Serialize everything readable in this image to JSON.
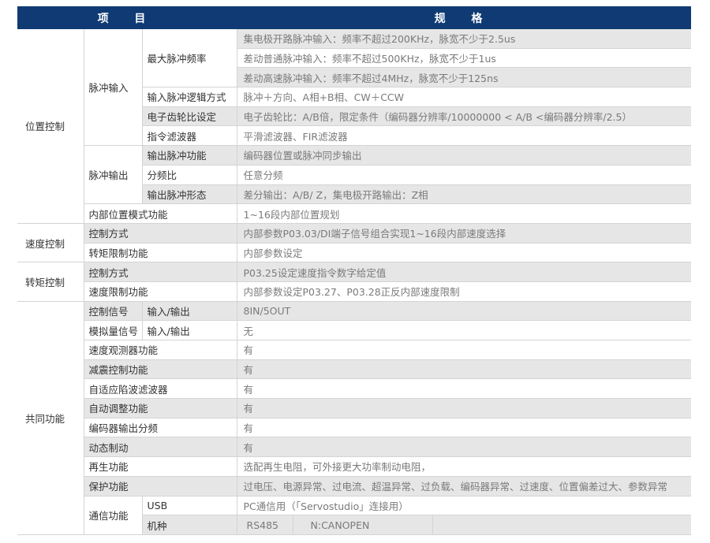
{
  "header": {
    "item": "项 目",
    "spec": "规 格",
    "bg_color": "#0f3a73"
  },
  "position": {
    "label": "位置控制",
    "pulse_in": {
      "label": "脉冲输入",
      "max_freq": "最大脉冲频率",
      "freq1": "集电极开路脉冲输入：频率不超过200KHz，脉宽不少于2.5us",
      "freq2": "差动普通脉冲输入：频率不超过500KHz，脉宽不少于1us",
      "freq3": "差动高速脉冲输入：频率不超过4MHz，脉宽不少于125ns",
      "logic": "输入脉冲逻辑方式",
      "logic_v": "脉冲＋方向、A相+B相、CW＋CCW",
      "gear": "电子齿轮比设定",
      "gear_v": "电子齿轮比：A/B倍，限定条件（编码器分辨率/10000000 < A/B <编码器分辨率/2.5）",
      "filter": "指令滤波器",
      "filter_v": "平滑滤波器、FIR滤波器"
    },
    "pulse_out": {
      "label": "脉冲输出",
      "func": "输出脉冲功能",
      "func_v": "编码器位置或脉冲同步输出",
      "div": "分频比",
      "div_v": "任意分频",
      "form": "输出脉冲形态",
      "form_v": "差分输出：A/B/ Z，集电极开路输出：Z相"
    },
    "internal": "内部位置模式功能",
    "internal_v": "1~16段内部位置规划"
  },
  "speed": {
    "label": "速度控制",
    "mode": "控制方式",
    "mode_v": "内部参数P03.03/DI端子信号组合实现1~16段内部速度选择",
    "torque_limit": "转矩限制功能",
    "torque_limit_v": "内部参数设定"
  },
  "torque": {
    "label": "转矩控制",
    "mode": "控制方式",
    "mode_v": "P03.25设定速度指令数字给定值",
    "speed_limit": "速度限制功能",
    "speed_limit_v": "内部参数设定P03.27、P03.28正反内部速度限制"
  },
  "common": {
    "label": "共同功能",
    "ctrl_sig": "控制信号",
    "ctrl_io": "输入/输出",
    "ctrl_v": "8IN/5OUT",
    "analog": "模拟量信号",
    "analog_io": "输入/输出",
    "analog_v": "无",
    "observer": "速度观测器功能",
    "observer_v": "有",
    "vib": "减震控制功能",
    "vib_v": "有",
    "notch": "自适应陷波滤波器",
    "notch_v": "有",
    "autotune": "自动调整功能",
    "autotune_v": "有",
    "enc_div": "编码器输出分频",
    "enc_div_v": "有",
    "dyn_brake": "动态制动",
    "dyn_brake_v": "有",
    "regen": "再生功能",
    "regen_v": "选配再生电阻，可外接更大功率制动电阻，",
    "protect": "保护功能",
    "protect_v": "过电压、电源异常、过电流、超温异常、过负载、编码器异常、过速度、位置偏差过大、参数异常",
    "comm": "通信功能",
    "usb": "USB",
    "usb_v": "PC通信用（「Servostudio」连接用）",
    "model": "机种",
    "model_v1": "RS485",
    "model_v2": "N:CANOPEN"
  }
}
